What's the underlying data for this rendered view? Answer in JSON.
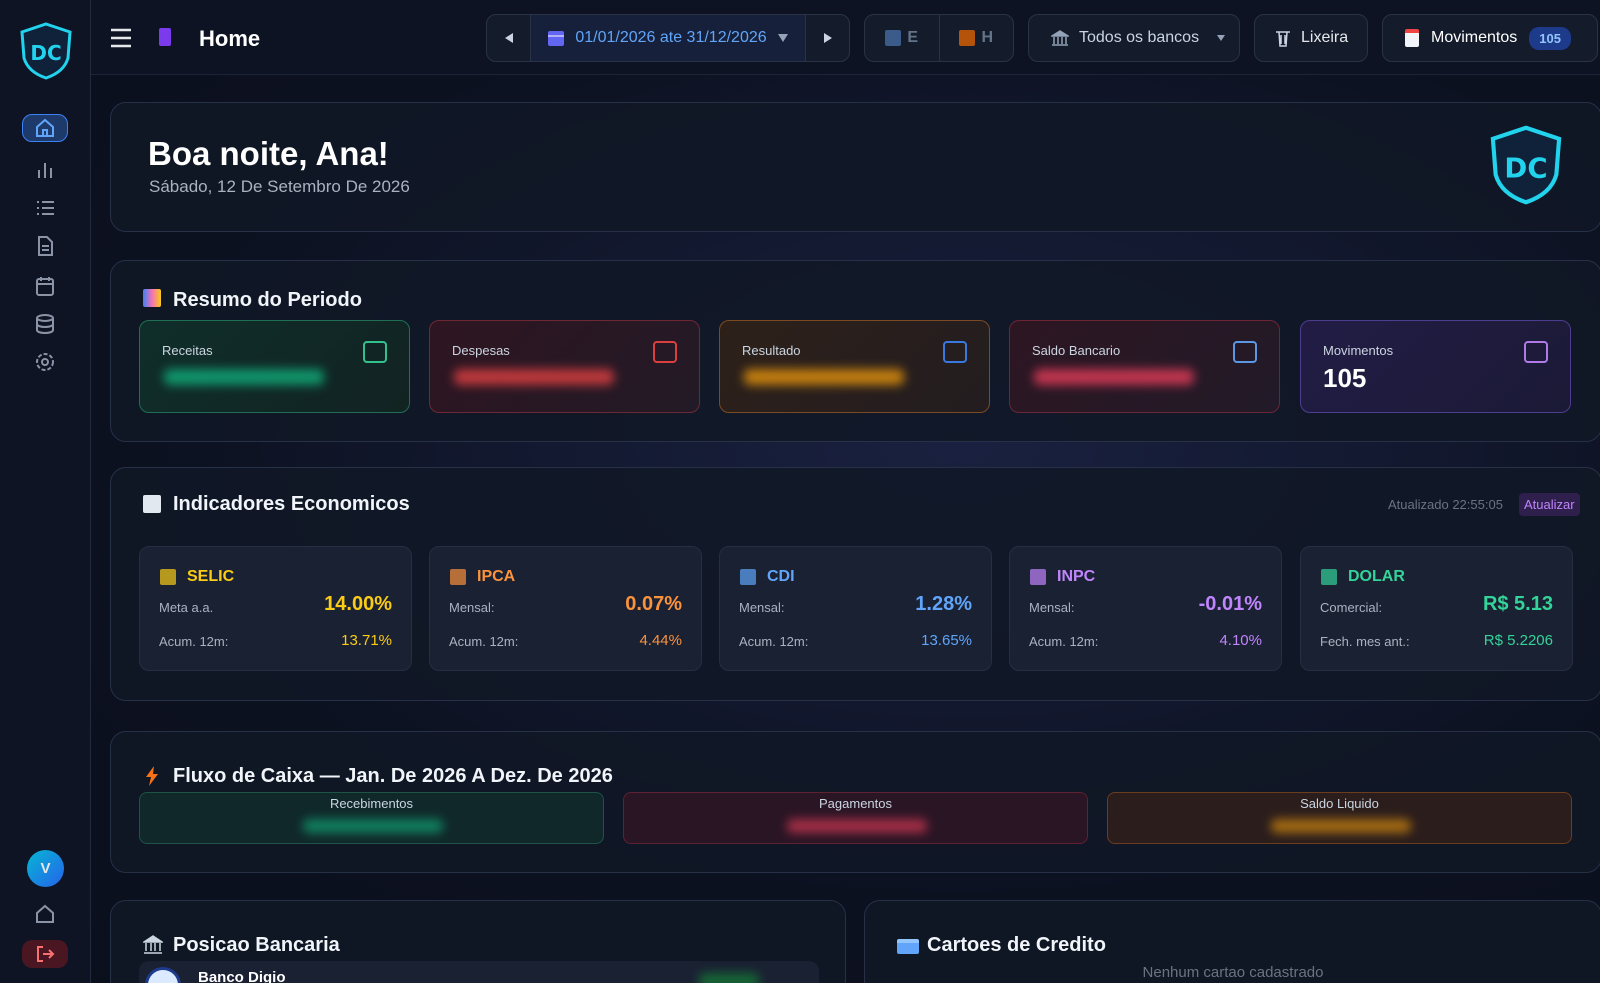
{
  "topbar": {
    "title": "Home",
    "date_range": "01/01/2026 ate 31/12/2026",
    "filter_e": "E",
    "filter_h": "H",
    "banks": "Todos os bancos",
    "trash": "Lixeira",
    "movements": "Movimentos",
    "movements_count": "105"
  },
  "greeting": {
    "title": "Boa noite, Ana!",
    "date": "Sábado, 12 De Setembro De 2026"
  },
  "summary": {
    "title": "Resumo do Periodo",
    "cards": [
      {
        "label": "Receitas"
      },
      {
        "label": "Despesas"
      },
      {
        "label": "Resultado"
      },
      {
        "label": "Saldo Bancario"
      },
      {
        "label": "Movimentos",
        "value": "105"
      }
    ]
  },
  "indicators": {
    "title": "Indicadores Economicos",
    "updated": "Atualizado 22:55:05",
    "refresh": "Atualizar",
    "items": [
      {
        "name": "SELIC",
        "row1_label": "Meta a.a.",
        "row1_value": "14.00%",
        "row2_label": "Acum. 12m:",
        "row2_value": "13.71%"
      },
      {
        "name": "IPCA",
        "row1_label": "Mensal:",
        "row1_value": "0.07%",
        "row2_label": "Acum. 12m:",
        "row2_value": "4.44%"
      },
      {
        "name": "CDI",
        "row1_label": "Mensal:",
        "row1_value": "1.28%",
        "row2_label": "Acum. 12m:",
        "row2_value": "13.65%"
      },
      {
        "name": "INPC",
        "row1_label": "Mensal:",
        "row1_value": "-0.01%",
        "row2_label": "Acum. 12m:",
        "row2_value": "4.10%"
      },
      {
        "name": "DOLAR",
        "row1_label": "Comercial:",
        "row1_value": "R$ 5.13",
        "row2_label": "Fech. mes ant.:",
        "row2_value": "R$ 5.2206"
      }
    ]
  },
  "cash_flow": {
    "title": "Fluxo de Caixa — Jan. De 2026 A Dez. De 2026",
    "boxes": [
      "Recebimentos",
      "Pagamentos",
      "Saldo Liquido"
    ]
  },
  "bank_position": {
    "title": "Posicao Bancaria",
    "banks": [
      "Banco Digio"
    ]
  },
  "credit_cards": {
    "title": "Cartoes de Credito",
    "empty": "Nenhum cartao cadastrado"
  },
  "sidebar": {
    "avatar": "V"
  }
}
